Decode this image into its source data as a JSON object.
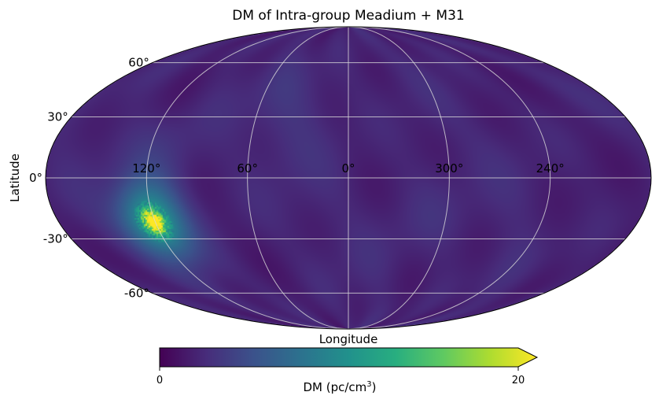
{
  "chart_data": {
    "type": "heatmap",
    "projection": "mollweide",
    "title": "DM of Intra-group Meadium + M31",
    "xlabel": "Longitude",
    "ylabel": "Latitude",
    "grid": true,
    "lon_ticks": [
      {
        "lon": 120,
        "label": "120°"
      },
      {
        "lon": 60,
        "label": "60°"
      },
      {
        "lon": 0,
        "label": "0°"
      },
      {
        "lon": -60,
        "label": "300°"
      },
      {
        "lon": -120,
        "label": "240°"
      }
    ],
    "lat_ticks": [
      {
        "lat": 60,
        "label": "60°"
      },
      {
        "lat": 30,
        "label": "30°"
      },
      {
        "lat": 0,
        "label": "0°"
      },
      {
        "lat": -30,
        "label": "-30°"
      },
      {
        "lat": -60,
        "label": "-60°"
      }
    ],
    "background_dm": 2,
    "features": [
      {
        "name": "M31 halo",
        "lon": 121,
        "lat": -21,
        "sigma_deg": 13,
        "peak": 9
      },
      {
        "name": "M31 core",
        "lon": 121,
        "lat": -21.5,
        "sigma_deg": 3.5,
        "peak": 14
      },
      {
        "name": "faint patch",
        "lon": 110,
        "lat": 10,
        "sigma_deg": 15,
        "peak": 1.2
      },
      {
        "name": "faint patch",
        "lon": 35,
        "lat": 35,
        "sigma_deg": 20,
        "peak": 0.8
      },
      {
        "name": "faint patch",
        "lon": -45,
        "lat": -20,
        "sigma_deg": 18,
        "peak": 0.7
      }
    ],
    "colorbar": {
      "label_prefix": "DM (pc/cm",
      "label_exp": "3",
      "label_suffix": ")",
      "min": 0,
      "max": 20,
      "tick_labels": [
        "0",
        "20"
      ],
      "extend": "max",
      "cmap": "viridis"
    }
  }
}
